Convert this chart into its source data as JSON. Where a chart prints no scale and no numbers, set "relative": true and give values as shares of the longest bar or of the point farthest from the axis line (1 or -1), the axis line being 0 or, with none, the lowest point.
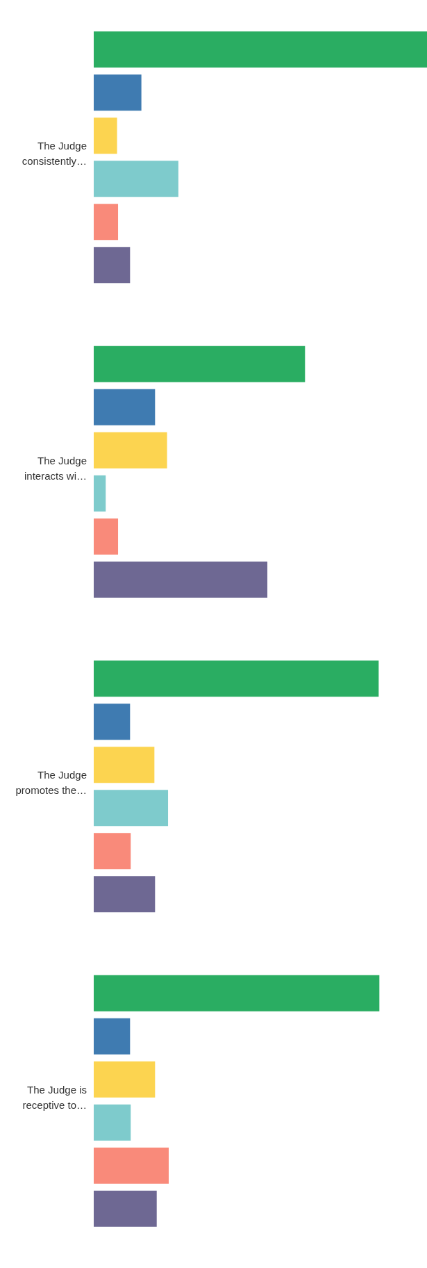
{
  "chart_data": {
    "type": "bar",
    "orientation": "horizontal",
    "relative": true,
    "categories": [
      "The Judge consistently…",
      "The Judge interacts wi…",
      "The Judge promotes the…",
      "The Judge is receptive to…"
    ],
    "series": [
      {
        "color": "#2aad62",
        "values": [
          1,
          0.634,
          0.855,
          0.857
        ]
      },
      {
        "color": "#3f7bb1",
        "values": [
          0.143,
          0.184,
          0.109,
          0.109
        ]
      },
      {
        "color": "#fcd450",
        "values": [
          0.07,
          0.22,
          0.182,
          0.184
        ]
      },
      {
        "color": "#7ecbcc",
        "values": [
          0.254,
          0.036,
          0.223,
          0.111
        ]
      },
      {
        "color": "#f98a7a",
        "values": [
          0.073,
          0.073,
          0.111,
          0.225
        ]
      },
      {
        "color": "#6e6893",
        "values": [
          0.109,
          0.521,
          0.184,
          0.189
        ]
      }
    ],
    "grid": false,
    "legend": false
  }
}
